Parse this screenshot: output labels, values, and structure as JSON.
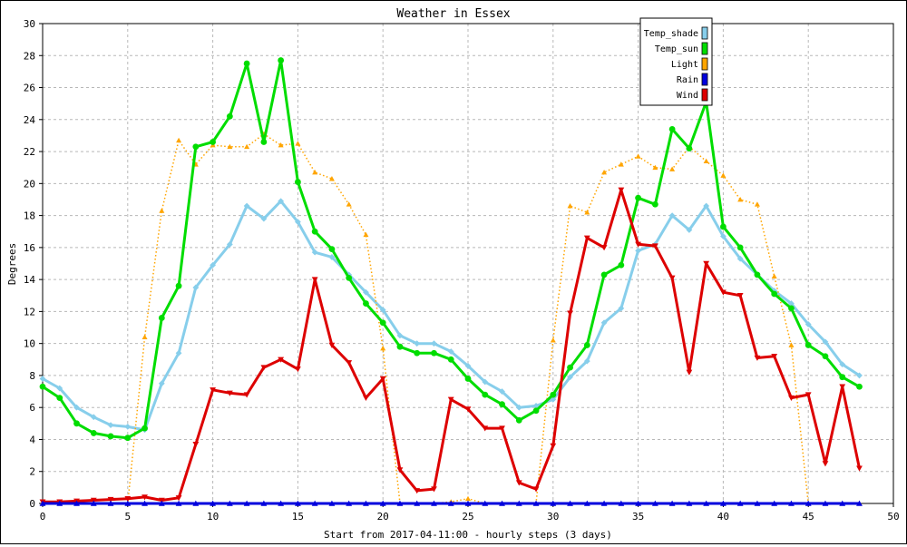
{
  "chart_data": {
    "type": "line",
    "title": "Weather in Essex",
    "xlabel": "Start from 2017-04-11:00 - hourly steps (3 days)",
    "ylabel": "Degrees",
    "xlim": [
      0,
      50
    ],
    "ylim": [
      0,
      30
    ],
    "x_ticks": [
      0,
      5,
      10,
      15,
      20,
      25,
      30,
      35,
      40,
      45,
      50
    ],
    "y_ticks": [
      0,
      2,
      4,
      6,
      8,
      10,
      12,
      14,
      16,
      18,
      20,
      22,
      24,
      26,
      28,
      30
    ],
    "grid": true,
    "legend_position": "top-right",
    "series": [
      {
        "name": "Temp_shade",
        "color": "#87CEEB",
        "style": "solid",
        "marker": "diamond",
        "values": [
          7.8,
          7.2,
          6.0,
          5.4,
          4.9,
          4.8,
          4.6,
          7.5,
          9.4,
          13.5,
          14.9,
          16.2,
          18.6,
          17.8,
          18.9,
          17.6,
          15.7,
          15.4,
          14.3,
          13.2,
          12.1,
          10.5,
          10.0,
          10.0,
          9.5,
          8.6,
          7.6,
          7.0,
          6.0,
          6.1,
          6.5,
          7.9,
          8.9,
          11.3,
          12.2,
          15.8,
          16.2,
          18.0,
          17.1,
          18.6,
          16.7,
          15.3,
          14.3,
          13.3,
          12.5,
          11.2,
          10.1,
          8.7,
          8.0
        ]
      },
      {
        "name": "Temp_sun",
        "color": "#00dd00",
        "style": "solid",
        "marker": "circle",
        "values": [
          7.3,
          6.6,
          5.0,
          4.4,
          4.2,
          4.1,
          4.7,
          11.6,
          13.6,
          22.3,
          22.6,
          24.2,
          27.5,
          22.6,
          27.7,
          20.1,
          17.0,
          15.9,
          14.1,
          12.5,
          11.3,
          9.8,
          9.4,
          9.4,
          9.0,
          7.8,
          6.8,
          6.2,
          5.2,
          5.8,
          6.8,
          8.5,
          9.9,
          14.3,
          14.9,
          19.1,
          18.7,
          23.4,
          22.2,
          25.1,
          17.3,
          16.0,
          14.3,
          13.1,
          12.2,
          9.9,
          9.2,
          7.9,
          7.3
        ]
      },
      {
        "name": "Light",
        "color": "#FFA500",
        "style": "dotted",
        "marker": "triangle-up",
        "values": [
          0,
          0,
          0,
          0,
          0,
          0,
          10.4,
          18.3,
          22.7,
          21.2,
          22.4,
          22.3,
          22.3,
          23.1,
          22.4,
          22.5,
          20.7,
          20.3,
          18.7,
          16.8,
          9.7,
          0,
          0,
          0,
          0.1,
          0.3,
          0,
          0,
          0,
          0,
          10.2,
          18.6,
          18.2,
          20.7,
          21.2,
          21.7,
          21.0,
          20.9,
          22.3,
          21.4,
          20.5,
          19.0,
          18.7,
          14.2,
          9.9,
          0,
          0,
          0,
          0
        ]
      },
      {
        "name": "Rain",
        "color": "#0000dd",
        "style": "solid",
        "marker": "triangle-up",
        "values": [
          0,
          0,
          0,
          0,
          0,
          0,
          0,
          0,
          0,
          0,
          0,
          0,
          0,
          0,
          0,
          0,
          0,
          0,
          0,
          0,
          0,
          0,
          0,
          0,
          0,
          0,
          0,
          0,
          0,
          0,
          0,
          0,
          0,
          0,
          0,
          0,
          0,
          0,
          0,
          0,
          0,
          0,
          0,
          0,
          0,
          0,
          0,
          0,
          0
        ]
      },
      {
        "name": "Wind",
        "color": "#dd0000",
        "style": "solid",
        "marker": "triangle-down",
        "values": [
          0.1,
          0.1,
          0.15,
          0.2,
          0.25,
          0.3,
          0.4,
          0.2,
          0.35,
          3.7,
          7.1,
          6.9,
          6.8,
          8.5,
          9.0,
          8.4,
          14.0,
          9.9,
          8.8,
          6.6,
          7.8,
          2.1,
          0.8,
          0.9,
          6.5,
          5.9,
          4.7,
          4.7,
          1.3,
          0.9,
          3.6,
          11.9,
          16.6,
          16.0,
          19.6,
          16.2,
          16.1,
          14.1,
          8.2,
          15.0,
          13.2,
          13.0,
          9.1,
          9.2,
          6.6,
          6.8,
          2.5,
          7.3,
          2.2
        ]
      }
    ]
  }
}
